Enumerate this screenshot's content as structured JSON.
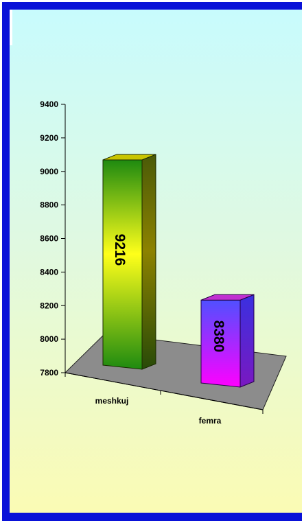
{
  "chart_data": {
    "type": "bar",
    "categories": [
      "meshkuj",
      "femra"
    ],
    "values": [
      9216,
      8380
    ],
    "data_labels": [
      "9216",
      "8380"
    ],
    "title": "",
    "xlabel": "",
    "ylabel": "",
    "ylim": [
      7800,
      9400
    ],
    "yticks": [
      "7800",
      "8000",
      "8200",
      "8400",
      "8600",
      "8800",
      "9000",
      "9200",
      "9400"
    ],
    "grid": false,
    "style": "3d-column",
    "colors": {
      "frame": "#0a12d8",
      "floor": "#8c8c8c",
      "bar1_front_top": "#ffff1a",
      "bar1_front_bottom": "#1e8a10",
      "bar1_top": "#c9c400",
      "bar1_side": "#5c5e10",
      "bar2_front_top": "#6a4cff",
      "bar2_front_bottom": "#ff00ff",
      "bar2_top": "#c030d0",
      "bar2_side": "#4422c8"
    }
  }
}
